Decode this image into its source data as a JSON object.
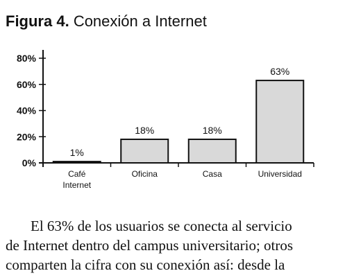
{
  "figure": {
    "label": "Figura 4.",
    "title": "Conexión a Internet"
  },
  "chart_data": {
    "type": "bar",
    "categories": [
      [
        "Café",
        "Internet"
      ],
      [
        "Oficina"
      ],
      [
        "Casa"
      ],
      [
        "Universidad"
      ]
    ],
    "values": [
      1,
      18,
      18,
      63
    ],
    "value_labels": [
      "1%",
      "18%",
      "18%",
      "63%"
    ],
    "ylim": [
      0,
      80
    ],
    "yticks": [
      0,
      20,
      40,
      60,
      80
    ],
    "ytick_labels": [
      "0%",
      "20%",
      "40%",
      "60%",
      "80%"
    ],
    "xlabel": "",
    "ylabel": "",
    "grid": false,
    "bar_color": "#d9d9d9"
  },
  "paragraph": {
    "lines": [
      "El 63% de los usuarios se conecta al servicio",
      "de Internet dentro del campus universitario; otros",
      "comparten la cifra con su conexión así: desde la"
    ]
  }
}
